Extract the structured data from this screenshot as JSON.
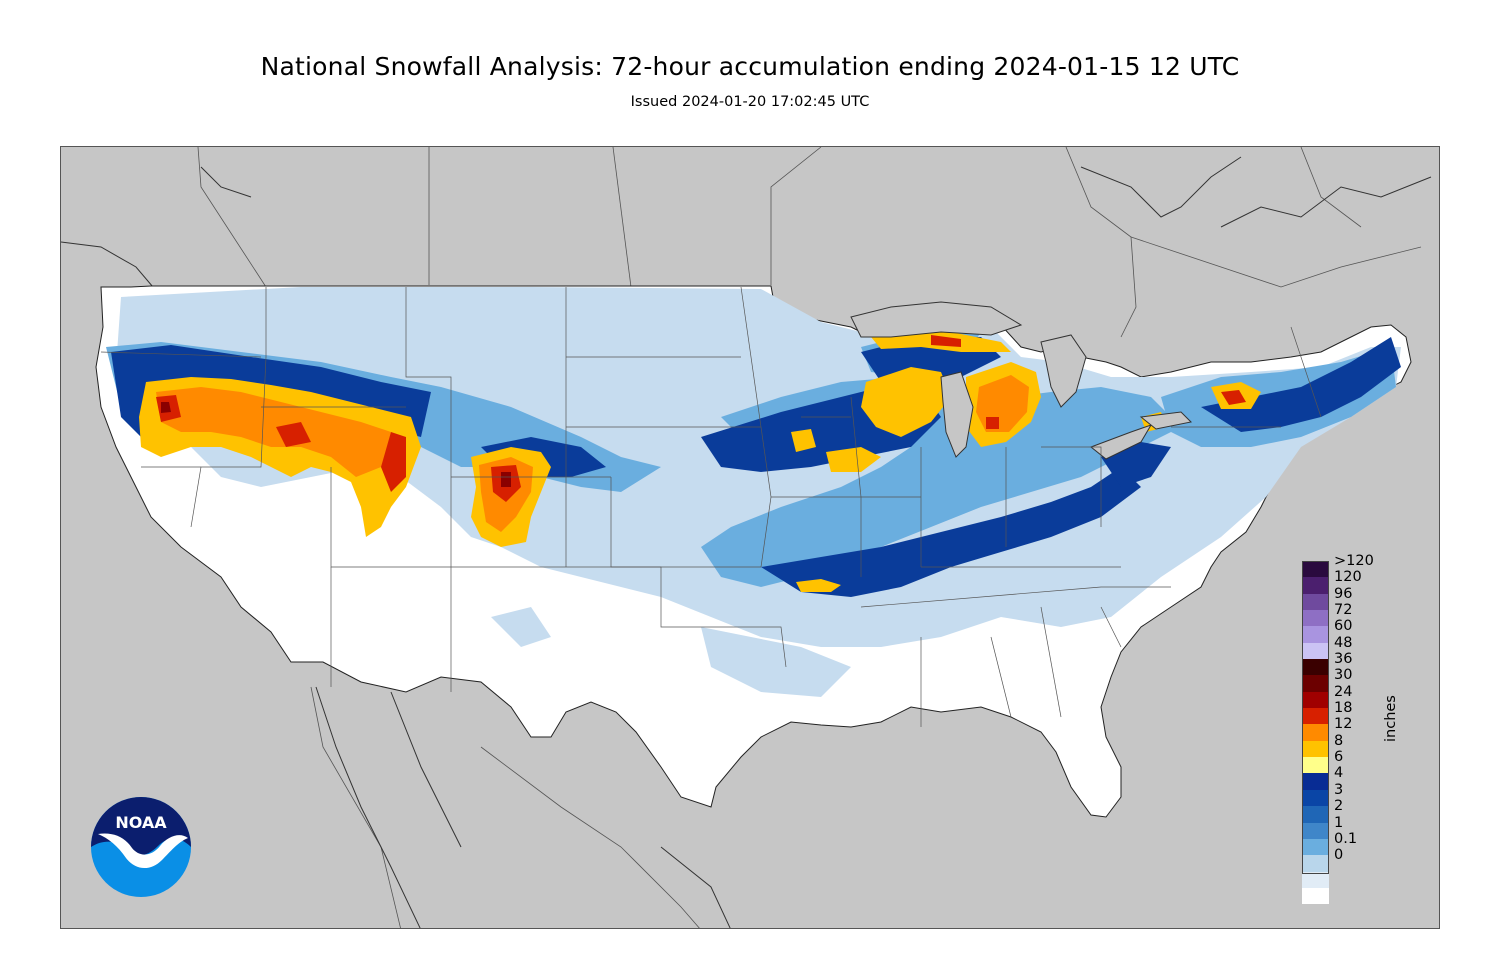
{
  "header": {
    "title": "National Snowfall Analysis: 72-hour accumulation ending 2024-01-15 12 UTC",
    "subtitle": "Issued 2024-01-20 17:02:45 UTC"
  },
  "legend": {
    "units": "inches",
    "bins": [
      {
        "label": ">120",
        "color": "#2a0a3e"
      },
      {
        "label": "120",
        "color": "#4b1f6e"
      },
      {
        "label": "96",
        "color": "#6f4a9e"
      },
      {
        "label": "72",
        "color": "#8e6fc4"
      },
      {
        "label": "60",
        "color": "#a994e0"
      },
      {
        "label": "48",
        "color": "#cbc3f4"
      },
      {
        "label": "36",
        "color": "#3a0000"
      },
      {
        "label": "30",
        "color": "#6c0000"
      },
      {
        "label": "24",
        "color": "#a00000"
      },
      {
        "label": "18",
        "color": "#d72000"
      },
      {
        "label": "12",
        "color": "#ff8a00"
      },
      {
        "label": "8",
        "color": "#ffc200"
      },
      {
        "label": "6",
        "color": "#ffff8a"
      },
      {
        "label": "4",
        "color": "#082c94"
      },
      {
        "label": "3",
        "color": "#0a45a6"
      },
      {
        "label": "2",
        "color": "#1f66b6"
      },
      {
        "label": "1",
        "color": "#3f86c9"
      },
      {
        "label": "0.1",
        "color": "#6aaedf"
      },
      {
        "label": "0",
        "color": "#b9d6eb"
      },
      {
        "label": "",
        "color": "#e1ecf6"
      },
      {
        "label": "",
        "color": "#ffffff"
      }
    ]
  },
  "colors": {
    "land_outside": "#c6c6c6",
    "water": "#c6c6c6",
    "conus_base": "#ffffff",
    "light_blue": "#c6dcef",
    "mid_blue": "#6aaedf",
    "blue": "#1f66b6",
    "dark_blue": "#0a3c9a",
    "yellow": "#ffc200",
    "orange": "#ff8a00",
    "red": "#d72000",
    "dark_red": "#8a0000"
  },
  "logo": {
    "text": "NOAA",
    "icon": "noaa-logo-icon",
    "dark": "#0b1e6e",
    "light": "#0a8fe6"
  }
}
